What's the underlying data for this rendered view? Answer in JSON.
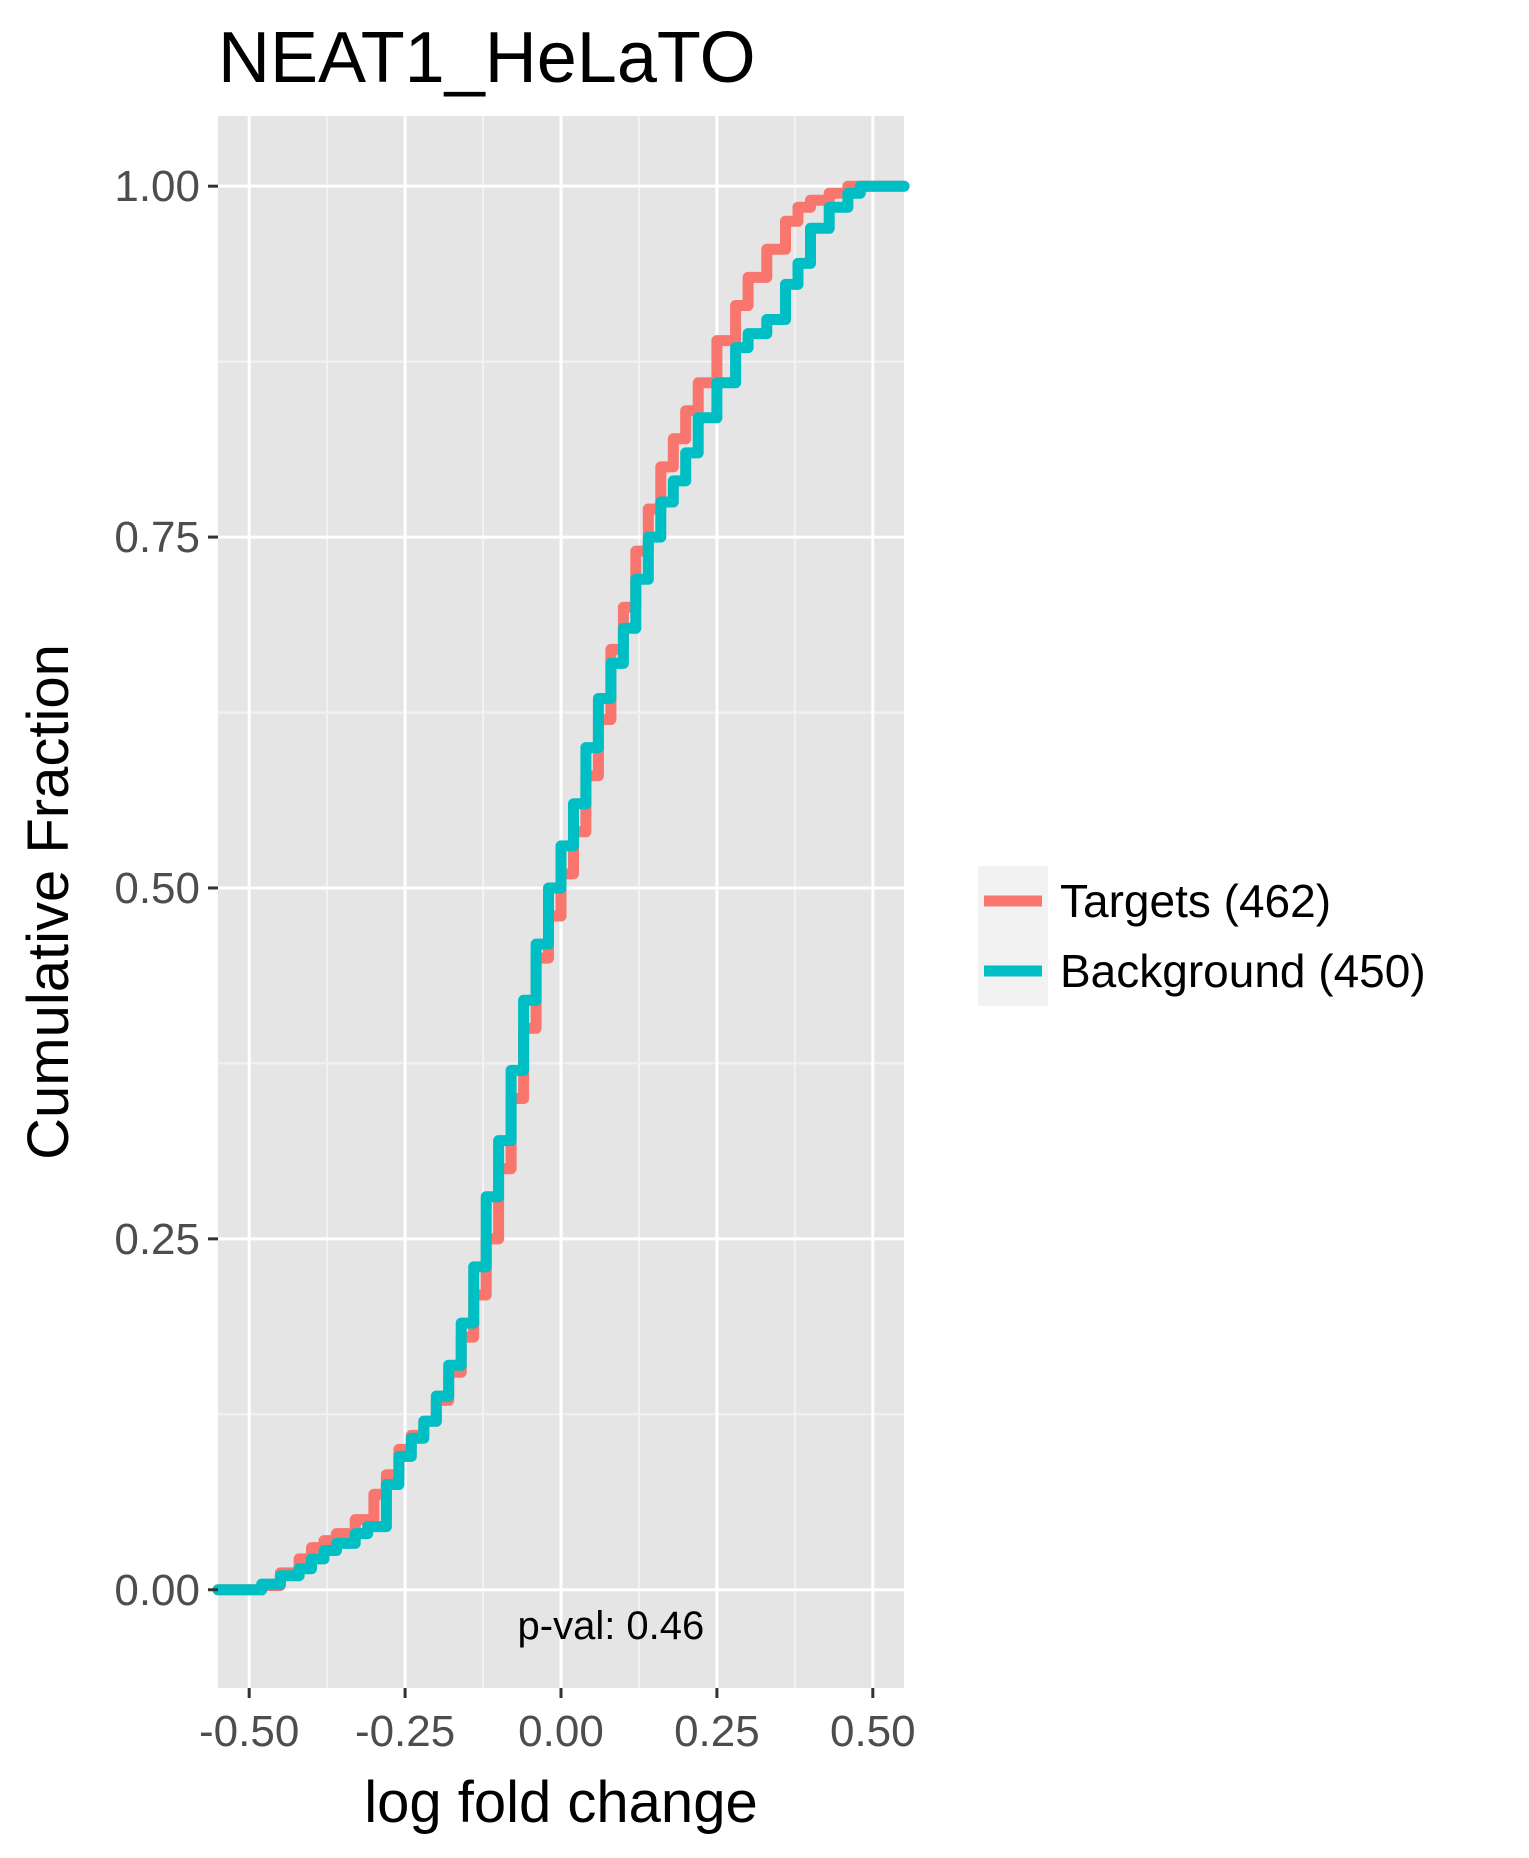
{
  "chart_data": {
    "type": "line",
    "title": "NEAT1_HeLaTO",
    "xlabel": "log fold change",
    "ylabel": "Cumulative Fraction",
    "xlim": [
      -0.55,
      0.55
    ],
    "ylim": [
      -0.07,
      1.05
    ],
    "x_ticks": [
      -0.5,
      -0.25,
      0.0,
      0.25,
      0.5
    ],
    "x_tick_labels": [
      "-0.50",
      "-0.25",
      "0.00",
      "0.25",
      "0.50"
    ],
    "y_ticks": [
      0.0,
      0.25,
      0.5,
      0.75,
      1.0
    ],
    "y_tick_labels": [
      "0.00",
      "0.25",
      "0.50",
      "0.75",
      "1.00"
    ],
    "grid": true,
    "legend_position": "right",
    "annotation": "p-val:  0.46",
    "series": [
      {
        "name": "Targets (462)",
        "color": "#F8766D",
        "x": [
          -0.55,
          -0.5,
          -0.48,
          -0.45,
          -0.42,
          -0.4,
          -0.38,
          -0.36,
          -0.33,
          -0.3,
          -0.28,
          -0.26,
          -0.24,
          -0.22,
          -0.2,
          -0.18,
          -0.16,
          -0.14,
          -0.12,
          -0.1,
          -0.08,
          -0.06,
          -0.04,
          -0.02,
          0.0,
          0.02,
          0.04,
          0.06,
          0.08,
          0.1,
          0.12,
          0.14,
          0.16,
          0.18,
          0.2,
          0.22,
          0.25,
          0.28,
          0.3,
          0.33,
          0.36,
          0.38,
          0.4,
          0.43,
          0.46,
          0.48,
          0.55
        ],
        "y": [
          0.0,
          0.0,
          0.003,
          0.012,
          0.022,
          0.03,
          0.035,
          0.04,
          0.05,
          0.068,
          0.082,
          0.1,
          0.11,
          0.12,
          0.135,
          0.155,
          0.18,
          0.21,
          0.25,
          0.3,
          0.35,
          0.4,
          0.45,
          0.48,
          0.51,
          0.54,
          0.58,
          0.62,
          0.67,
          0.7,
          0.74,
          0.77,
          0.8,
          0.82,
          0.84,
          0.86,
          0.89,
          0.915,
          0.935,
          0.955,
          0.975,
          0.985,
          0.99,
          0.995,
          1.0,
          1.0,
          1.0
        ]
      },
      {
        "name": "Background (450)",
        "color": "#00BFC4",
        "x": [
          -0.55,
          -0.5,
          -0.48,
          -0.45,
          -0.42,
          -0.4,
          -0.38,
          -0.36,
          -0.33,
          -0.31,
          -0.28,
          -0.26,
          -0.24,
          -0.22,
          -0.2,
          -0.18,
          -0.16,
          -0.14,
          -0.12,
          -0.1,
          -0.08,
          -0.06,
          -0.04,
          -0.02,
          0.0,
          0.02,
          0.04,
          0.06,
          0.08,
          0.1,
          0.12,
          0.14,
          0.16,
          0.18,
          0.2,
          0.22,
          0.25,
          0.28,
          0.3,
          0.33,
          0.36,
          0.38,
          0.4,
          0.43,
          0.46,
          0.48,
          0.55
        ],
        "y": [
          0.0,
          0.0,
          0.004,
          0.01,
          0.015,
          0.022,
          0.028,
          0.033,
          0.04,
          0.045,
          0.075,
          0.095,
          0.108,
          0.12,
          0.138,
          0.16,
          0.19,
          0.23,
          0.28,
          0.32,
          0.37,
          0.42,
          0.46,
          0.5,
          0.53,
          0.56,
          0.6,
          0.635,
          0.66,
          0.685,
          0.72,
          0.75,
          0.775,
          0.79,
          0.81,
          0.835,
          0.86,
          0.885,
          0.895,
          0.905,
          0.93,
          0.945,
          0.97,
          0.985,
          0.995,
          1.0,
          1.0
        ]
      }
    ]
  }
}
